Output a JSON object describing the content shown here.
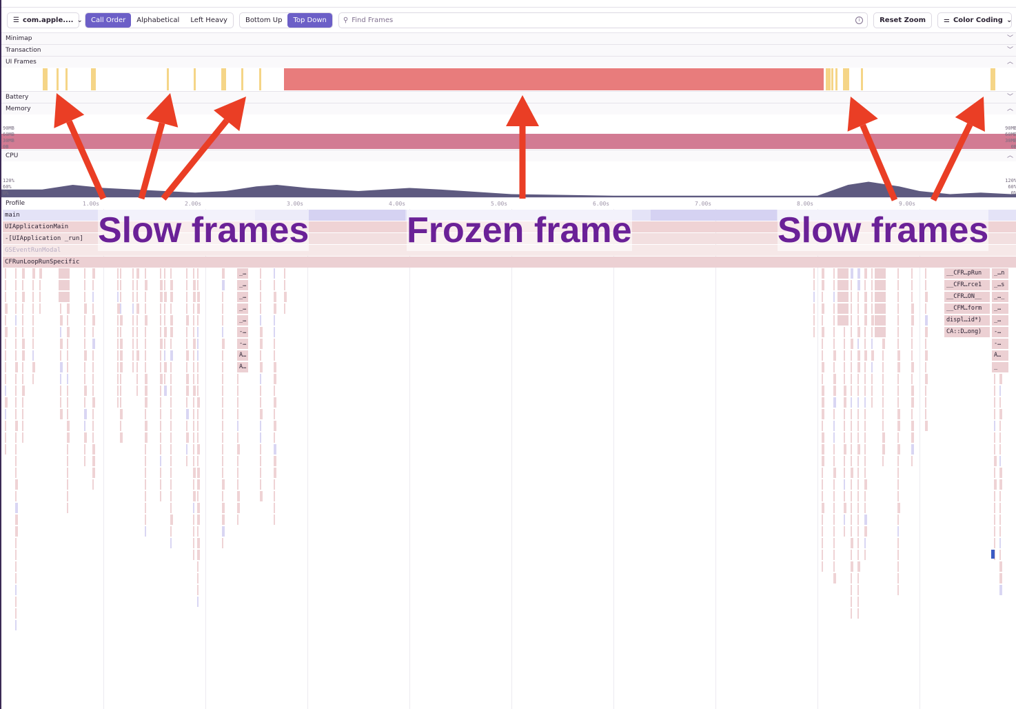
{
  "toolbar": {
    "thread_select": "com.apple....",
    "sort_options": [
      "Call Order",
      "Alphabetical",
      "Left Heavy"
    ],
    "sort_active": 0,
    "view_options": [
      "Bottom Up",
      "Top Down"
    ],
    "view_active": 1,
    "search_placeholder": "Find Frames",
    "reset_zoom": "Reset Zoom",
    "color_coding": "Color Coding"
  },
  "sections": {
    "minimap": "Minimap",
    "transaction": "Transaction",
    "ui_frames": "UI Frames",
    "battery": "Battery",
    "memory": "Memory",
    "cpu": "CPU",
    "profile": "Profile"
  },
  "colors": {
    "accent": "#6c5fc7",
    "slow_frame": "#f5d587",
    "frozen_frame": "#e87c7c",
    "memory": "#d27b93",
    "cpu": "#5e5a80",
    "annotation_text": "#6a2197",
    "arrow": "#ea3e25"
  },
  "ui_frames": {
    "frozen": [
      [
        2.89,
        8.18
      ]
    ],
    "slow": [
      0.53,
      0.66,
      0.75,
      1.0,
      1.74,
      2.01,
      2.28,
      2.47,
      2.65,
      8.2,
      8.26,
      8.3,
      8.37,
      8.41,
      8.55,
      9.82
    ]
  },
  "memory": {
    "ticks": [
      "90MB",
      "60MB",
      "30MB",
      "0B"
    ]
  },
  "cpu": {
    "ticks": [
      "120%",
      "60%",
      "0%"
    ],
    "series": [
      [
        0,
        25
      ],
      [
        0.4,
        25
      ],
      [
        0.7,
        40
      ],
      [
        1.0,
        30
      ],
      [
        1.3,
        25
      ],
      [
        1.6,
        20
      ],
      [
        1.9,
        15
      ],
      [
        2.2,
        20
      ],
      [
        2.5,
        35
      ],
      [
        2.7,
        40
      ],
      [
        3.0,
        30
      ],
      [
        3.5,
        20
      ],
      [
        4.0,
        30
      ],
      [
        4.3,
        25
      ],
      [
        5.0,
        10
      ],
      [
        6.0,
        5
      ],
      [
        7.0,
        5
      ],
      [
        8.0,
        5
      ],
      [
        8.3,
        40
      ],
      [
        8.5,
        50
      ],
      [
        8.8,
        35
      ],
      [
        9.0,
        20
      ],
      [
        9.3,
        10
      ],
      [
        9.6,
        15
      ],
      [
        9.9,
        10
      ]
    ]
  },
  "time_ticks": [
    "1.00s",
    "2.00s",
    "3.00s",
    "4.00s",
    "5.00s",
    "6.00s",
    "7.00s",
    "8.00s",
    "9.00s"
  ],
  "flame": {
    "rows": [
      "main",
      "UIApplicationMain",
      "-[UIApplication _run]",
      "GSEventRunModal",
      "CFRunLoopRunSpecific"
    ],
    "right_cells": [
      "__CFR…pRun",
      "__CFR…rce1",
      "__CFR…ON__",
      "__CFM…form",
      "displ…id*)",
      "CA::D…ong)"
    ],
    "right_cells_2": [
      "_…n",
      "_…s",
      "_…_",
      "_…",
      "_…",
      "-…",
      "-…",
      "A…",
      "_"
    ],
    "mid_cells": [
      "_…",
      "_…",
      "_…",
      "_…",
      "_…",
      "-…",
      "-…",
      "A…",
      "A…"
    ]
  },
  "annotations": {
    "left": "Slow frames",
    "center": "Frozen frame",
    "right": "Slow frames"
  }
}
